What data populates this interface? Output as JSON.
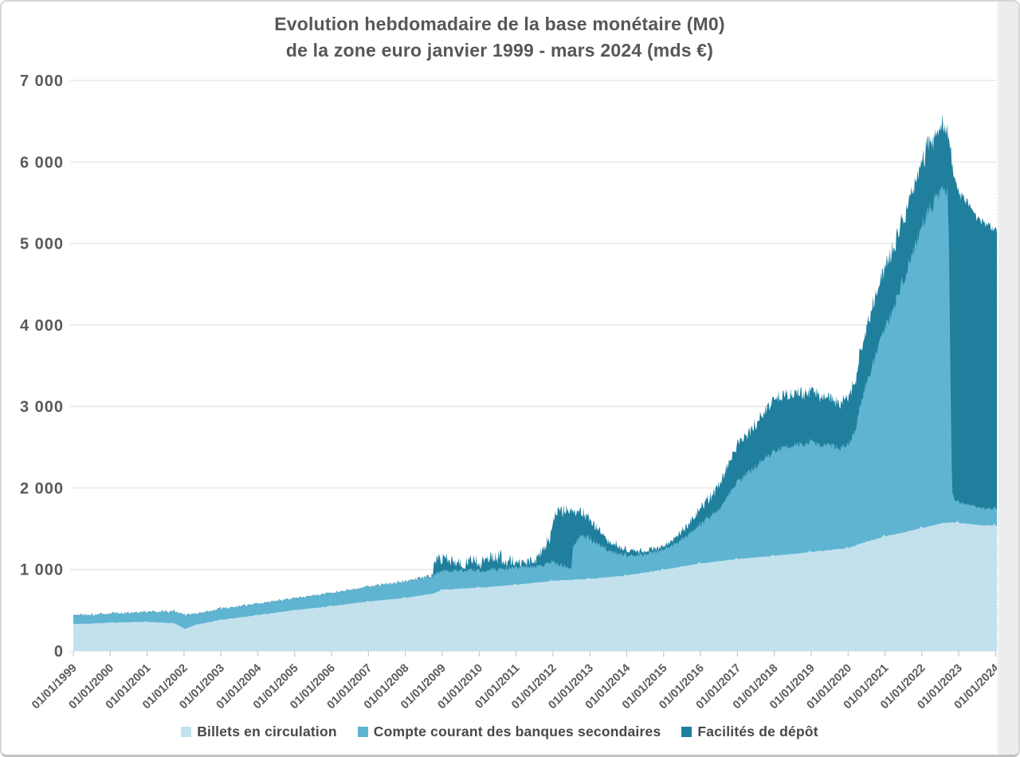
{
  "window": {
    "scrollbar": "vertical"
  },
  "chart_data": {
    "type": "area",
    "stacked": true,
    "title_line1": "Evolution hebdomadaire de la base monétaire (M0)",
    "title_line2": "de la zone euro janvier 1999 - mars 2024 (mds €)",
    "x_unit": "decimal_year_weekly",
    "x_range": [
      1999.0,
      2024.15
    ],
    "ylim": [
      0,
      7000
    ],
    "grid": "horizontal",
    "legend_position": "bottom",
    "y_tick_labels": [
      "0",
      "1 000",
      "2 000",
      "3 000",
      "4 000",
      "5 000",
      "6 000",
      "7 000"
    ],
    "y_tick_values": [
      0,
      1000,
      2000,
      3000,
      4000,
      5000,
      6000,
      7000
    ],
    "x_tick_labels": [
      "01/01/1999",
      "01/01/2000",
      "01/01/2001",
      "01/01/2002",
      "01/01/2003",
      "01/01/2004",
      "01/01/2005",
      "01/01/2006",
      "01/01/2007",
      "01/01/2008",
      "01/01/2009",
      "01/01/2010",
      "01/01/2011",
      "01/01/2012",
      "01/01/2013",
      "01/01/2014",
      "01/01/2015",
      "01/01/2016",
      "01/01/2017",
      "01/01/2018",
      "01/01/2019",
      "01/01/2020",
      "01/01/2021",
      "01/01/2022",
      "01/01/2023",
      "01/01/2024"
    ],
    "x_tick_years": [
      1999,
      2000,
      2001,
      2002,
      2003,
      2004,
      2005,
      2006,
      2007,
      2008,
      2009,
      2010,
      2011,
      2012,
      2013,
      2014,
      2015,
      2016,
      2017,
      2018,
      2019,
      2020,
      2021,
      2022,
      2023,
      2024
    ],
    "anchor_format": "[decimal_year, value_mds_eur, weekly_jitter_amplitude]",
    "noise_seed": 42,
    "series": [
      {
        "name": "Billets en circulation",
        "color": "#c3e1ed",
        "anchors": [
          [
            1999.0,
            330,
            5
          ],
          [
            2000.0,
            348,
            5
          ],
          [
            2001.0,
            358,
            5
          ],
          [
            2001.75,
            340,
            5
          ],
          [
            2001.95,
            288,
            7
          ],
          [
            2002.02,
            272,
            7
          ],
          [
            2002.3,
            320,
            5
          ],
          [
            2003.0,
            382,
            5
          ],
          [
            2004.0,
            442,
            5
          ],
          [
            2005.0,
            500,
            5
          ],
          [
            2006.0,
            552,
            5
          ],
          [
            2007.0,
            608,
            5
          ],
          [
            2008.0,
            652,
            5
          ],
          [
            2008.8,
            708,
            5
          ],
          [
            2009.0,
            752,
            5
          ],
          [
            2010.0,
            778,
            5
          ],
          [
            2011.0,
            812,
            5
          ],
          [
            2012.0,
            862,
            5
          ],
          [
            2013.0,
            885,
            5
          ],
          [
            2014.0,
            928,
            5
          ],
          [
            2015.0,
            998,
            5
          ],
          [
            2016.0,
            1075,
            5
          ],
          [
            2017.0,
            1128,
            5
          ],
          [
            2018.0,
            1168,
            5
          ],
          [
            2019.0,
            1215,
            5
          ],
          [
            2020.0,
            1262,
            5
          ],
          [
            2020.35,
            1320,
            5
          ],
          [
            2021.0,
            1408,
            5
          ],
          [
            2021.5,
            1455,
            5
          ],
          [
            2022.0,
            1510,
            5
          ],
          [
            2022.55,
            1568,
            5
          ],
          [
            2022.82,
            1578,
            5
          ],
          [
            2023.0,
            1572,
            5
          ],
          [
            2023.5,
            1548,
            5
          ],
          [
            2024.0,
            1538,
            5
          ],
          [
            2024.15,
            1535,
            5
          ]
        ]
      },
      {
        "name": "Compte courant des banques secondaires",
        "color": "#5fb4d2",
        "anchors": [
          [
            1999.0,
            105,
            16
          ],
          [
            2000.0,
            110,
            16
          ],
          [
            2001.0,
            118,
            16
          ],
          [
            2001.95,
            155,
            22
          ],
          [
            2002.02,
            168,
            22
          ],
          [
            2002.3,
            130,
            16
          ],
          [
            2003.0,
            132,
            15
          ],
          [
            2004.0,
            138,
            15
          ],
          [
            2005.0,
            142,
            15
          ],
          [
            2006.0,
            158,
            16
          ],
          [
            2007.0,
            178,
            18
          ],
          [
            2008.0,
            198,
            20
          ],
          [
            2008.72,
            215,
            24
          ],
          [
            2008.8,
            230,
            28
          ],
          [
            2009.0,
            225,
            28
          ],
          [
            2009.5,
            218,
            26
          ],
          [
            2010.0,
            215,
            26
          ],
          [
            2010.5,
            205,
            26
          ],
          [
            2011.0,
            212,
            26
          ],
          [
            2011.5,
            195,
            24
          ],
          [
            2011.9,
            215,
            28
          ],
          [
            2012.0,
            225,
            32
          ],
          [
            2012.17,
            190,
            36
          ],
          [
            2012.5,
            135,
            32
          ],
          [
            2012.54,
            420,
            46
          ],
          [
            2012.75,
            520,
            46
          ],
          [
            2013.0,
            495,
            42
          ],
          [
            2013.5,
            330,
            38
          ],
          [
            2014.0,
            245,
            28
          ],
          [
            2014.5,
            225,
            24
          ],
          [
            2015.0,
            235,
            24
          ],
          [
            2015.5,
            330,
            28
          ],
          [
            2016.0,
            480,
            32
          ],
          [
            2016.5,
            640,
            32
          ],
          [
            2017.0,
            950,
            38
          ],
          [
            2017.5,
            1120,
            38
          ],
          [
            2018.0,
            1290,
            42
          ],
          [
            2018.5,
            1330,
            42
          ],
          [
            2019.0,
            1340,
            42
          ],
          [
            2019.5,
            1285,
            42
          ],
          [
            2019.8,
            1235,
            42
          ],
          [
            2020.0,
            1280,
            42
          ],
          [
            2020.2,
            1390,
            46
          ],
          [
            2020.35,
            1750,
            55
          ],
          [
            2020.6,
            2080,
            65
          ],
          [
            2021.0,
            2550,
            75
          ],
          [
            2021.5,
            3100,
            85
          ],
          [
            2022.0,
            3720,
            95
          ],
          [
            2022.3,
            3950,
            105
          ],
          [
            2022.55,
            4100,
            105
          ],
          [
            2022.7,
            4050,
            95
          ],
          [
            2022.74,
            3300,
            85
          ],
          [
            2022.78,
            1500,
            65
          ],
          [
            2022.82,
            400,
            38
          ],
          [
            2022.88,
            270,
            24
          ],
          [
            2023.0,
            250,
            20
          ],
          [
            2023.5,
            220,
            18
          ],
          [
            2024.0,
            200,
            16
          ],
          [
            2024.15,
            195,
            16
          ]
        ]
      },
      {
        "name": "Facilités de dépôt",
        "color": "#1f7f9d",
        "anchors": [
          [
            1999.0,
            3,
            4
          ],
          [
            2008.0,
            4,
            5
          ],
          [
            2008.72,
            10,
            14
          ],
          [
            2008.8,
            180,
            85
          ],
          [
            2009.0,
            130,
            85
          ],
          [
            2009.5,
            90,
            75
          ],
          [
            2010.0,
            100,
            85
          ],
          [
            2010.5,
            160,
            95
          ],
          [
            2011.0,
            60,
            65
          ],
          [
            2011.5,
            60,
            55
          ],
          [
            2011.9,
            280,
            75
          ],
          [
            2012.0,
            480,
            85
          ],
          [
            2012.17,
            680,
            85
          ],
          [
            2012.5,
            720,
            75
          ],
          [
            2012.54,
            430,
            65
          ],
          [
            2012.75,
            300,
            55
          ],
          [
            2013.0,
            230,
            50
          ],
          [
            2013.5,
            110,
            42
          ],
          [
            2014.0,
            65,
            28
          ],
          [
            2014.5,
            35,
            20
          ],
          [
            2015.0,
            45,
            22
          ],
          [
            2015.5,
            105,
            38
          ],
          [
            2016.0,
            185,
            50
          ],
          [
            2016.5,
            300,
            55
          ],
          [
            2017.0,
            450,
            60
          ],
          [
            2017.5,
            530,
            65
          ],
          [
            2018.0,
            620,
            70
          ],
          [
            2018.5,
            645,
            70
          ],
          [
            2019.0,
            615,
            65
          ],
          [
            2019.5,
            590,
            65
          ],
          [
            2019.8,
            555,
            65
          ],
          [
            2020.0,
            575,
            65
          ],
          [
            2020.35,
            650,
            75
          ],
          [
            2020.6,
            700,
            80
          ],
          [
            2021.0,
            740,
            85
          ],
          [
            2021.5,
            760,
            88
          ],
          [
            2022.0,
            780,
            92
          ],
          [
            2022.3,
            800,
            96
          ],
          [
            2022.55,
            780,
            100
          ],
          [
            2022.7,
            740,
            92
          ],
          [
            2022.74,
            1450,
            85
          ],
          [
            2022.78,
            3050,
            75
          ],
          [
            2022.82,
            4000,
            65
          ],
          [
            2022.88,
            3950,
            56
          ],
          [
            2023.0,
            3800,
            52
          ],
          [
            2023.2,
            3720,
            48
          ],
          [
            2023.45,
            3560,
            48
          ],
          [
            2023.5,
            3530,
            48
          ],
          [
            2023.75,
            3480,
            44
          ],
          [
            2024.0,
            3430,
            44
          ],
          [
            2024.15,
            3420,
            44
          ]
        ]
      }
    ],
    "style_colors": {
      "title_text": "#55575a",
      "axis_text": "#595a5d",
      "gridline": "#e9e9e9",
      "axis_line": "#dcdcdc",
      "tick_mark": "#c9c9c9"
    }
  }
}
